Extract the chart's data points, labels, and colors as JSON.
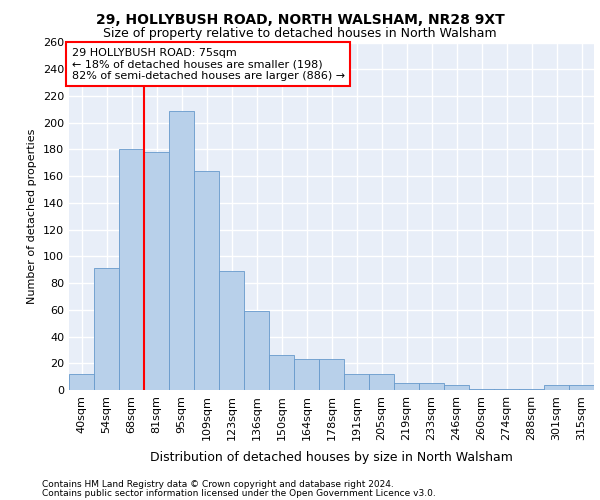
{
  "title1": "29, HOLLYBUSH ROAD, NORTH WALSHAM, NR28 9XT",
  "title2": "Size of property relative to detached houses in North Walsham",
  "xlabel": "Distribution of detached houses by size in North Walsham",
  "ylabel": "Number of detached properties",
  "footer1": "Contains HM Land Registry data © Crown copyright and database right 2024.",
  "footer2": "Contains public sector information licensed under the Open Government Licence v3.0.",
  "annotation_line1": "29 HOLLYBUSH ROAD: 75sqm",
  "annotation_line2": "← 18% of detached houses are smaller (198)",
  "annotation_line3": "82% of semi-detached houses are larger (886) →",
  "bins": [
    "40sqm",
    "54sqm",
    "68sqm",
    "81sqm",
    "95sqm",
    "109sqm",
    "123sqm",
    "136sqm",
    "150sqm",
    "164sqm",
    "178sqm",
    "191sqm",
    "205sqm",
    "219sqm",
    "233sqm",
    "246sqm",
    "260sqm",
    "274sqm",
    "288sqm",
    "301sqm",
    "315sqm"
  ],
  "values": [
    12,
    91,
    180,
    178,
    209,
    164,
    89,
    59,
    26,
    23,
    23,
    12,
    12,
    5,
    5,
    4,
    1,
    1,
    1,
    4,
    4
  ],
  "bar_color": "#b8d0ea",
  "bar_edge_color": "#6699cc",
  "red_line_x": 2.5,
  "background_color": "#e8eef8",
  "grid_color": "#ffffff",
  "ylim": [
    0,
    260
  ],
  "yticks": [
    0,
    20,
    40,
    60,
    80,
    100,
    120,
    140,
    160,
    180,
    200,
    220,
    240,
    260
  ],
  "title1_fontsize": 10,
  "title2_fontsize": 9,
  "xlabel_fontsize": 9,
  "ylabel_fontsize": 8,
  "tick_fontsize": 8,
  "xtick_fontsize": 8,
  "annotation_fontsize": 8,
  "footer_fontsize": 6.5
}
